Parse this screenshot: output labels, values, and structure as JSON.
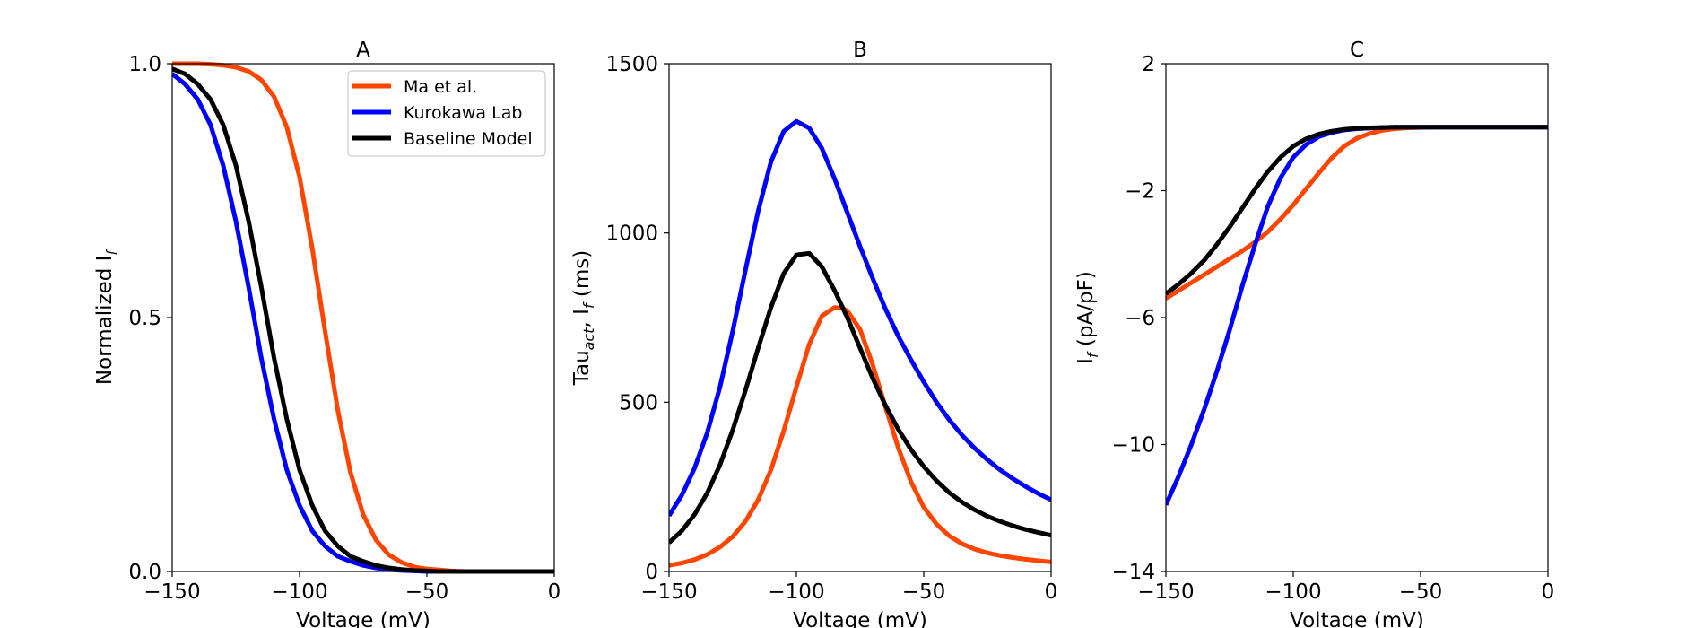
{
  "chart_data": [
    {
      "type": "line",
      "title": "A",
      "xlabel": "Voltage (mV)",
      "ylabel_main": "Normalized I",
      "ylabel_sub": "f",
      "xlim": [
        -150,
        0
      ],
      "ylim": [
        0.0,
        1.0
      ],
      "xticks": [
        -150,
        -100,
        -50,
        0
      ],
      "xtick_labels": [
        "−150",
        "−100",
        "−50",
        "0"
      ],
      "yticks": [
        0.0,
        0.5,
        1.0
      ],
      "ytick_labels": [
        "0.0",
        "0.5",
        "1.0"
      ],
      "grid": false,
      "legend": "top-right",
      "legend_entries": [
        "Ma et al.",
        "Kurokawa Lab",
        "Baseline Model"
      ],
      "series": [
        {
          "name": "Ma et al.",
          "color": "#FF4500",
          "x": [
            -150,
            -145,
            -140,
            -135,
            -130,
            -125,
            -120,
            -115,
            -110,
            -105,
            -100,
            -95,
            -90,
            -85,
            -80,
            -75,
            -70,
            -65,
            -60,
            -55,
            -50,
            -45,
            -40,
            -35,
            -30,
            -25,
            -20,
            -15,
            -10,
            -5,
            0
          ],
          "y": [
            1.0,
            1.0,
            1.0,
            0.999,
            0.997,
            0.993,
            0.985,
            0.968,
            0.935,
            0.875,
            0.777,
            0.636,
            0.474,
            0.318,
            0.195,
            0.112,
            0.062,
            0.033,
            0.018,
            0.009,
            0.005,
            0.003,
            0.001,
            0.0,
            0.0,
            0.0,
            0.0,
            0.0,
            0.0,
            0.0,
            0.0
          ]
        },
        {
          "name": "Kurokawa Lab",
          "color": "#0000FF",
          "x": [
            -150,
            -145,
            -140,
            -135,
            -130,
            -125,
            -120,
            -115,
            -110,
            -105,
            -100,
            -95,
            -90,
            -85,
            -80,
            -75,
            -70,
            -65,
            -60,
            -55,
            -50,
            -45,
            -40,
            -35,
            -30,
            -25,
            -20,
            -15,
            -10,
            -5,
            0
          ],
          "y": [
            0.98,
            0.96,
            0.93,
            0.88,
            0.8,
            0.69,
            0.56,
            0.42,
            0.3,
            0.2,
            0.13,
            0.08,
            0.05,
            0.03,
            0.02,
            0.012,
            0.007,
            0.004,
            0.002,
            0.001,
            0.0,
            0.0,
            0.0,
            0.0,
            0.0,
            0.0,
            0.0,
            0.0,
            0.0,
            0.0,
            0.0
          ]
        },
        {
          "name": "Baseline Model",
          "color": "#000000",
          "x": [
            -150,
            -145,
            -140,
            -135,
            -130,
            -125,
            -120,
            -115,
            -110,
            -105,
            -100,
            -95,
            -90,
            -85,
            -80,
            -75,
            -70,
            -65,
            -60,
            -55,
            -50,
            -45,
            -40,
            -35,
            -30,
            -25,
            -20,
            -15,
            -10,
            -5,
            0
          ],
          "y": [
            0.99,
            0.98,
            0.96,
            0.93,
            0.88,
            0.8,
            0.69,
            0.56,
            0.42,
            0.3,
            0.2,
            0.13,
            0.08,
            0.05,
            0.03,
            0.02,
            0.012,
            0.007,
            0.004,
            0.002,
            0.001,
            0.0,
            0.0,
            0.0,
            0.0,
            0.0,
            0.0,
            0.0,
            0.0,
            0.0,
            0.0
          ]
        }
      ]
    },
    {
      "type": "line",
      "title": "B",
      "xlabel": "Voltage (mV)",
      "ylabel_main": "Tau",
      "ylabel_sub": "act",
      "ylabel_mid": ", I",
      "ylabel_sub2": "f",
      "ylabel_tail": " (ms)",
      "xlim": [
        -150,
        0
      ],
      "ylim": [
        0,
        1500
      ],
      "xticks": [
        -150,
        -100,
        -50,
        0
      ],
      "xtick_labels": [
        "−150",
        "−100",
        "−50",
        "0"
      ],
      "yticks": [
        0,
        500,
        1000,
        1500
      ],
      "ytick_labels": [
        "0",
        "500",
        "1000",
        "1500"
      ],
      "grid": false,
      "series": [
        {
          "name": "Ma et al.",
          "color": "#FF4500",
          "x": [
            -150,
            -145,
            -140,
            -135,
            -130,
            -125,
            -120,
            -115,
            -110,
            -105,
            -100,
            -95,
            -90,
            -85,
            -82,
            -80,
            -75,
            -70,
            -65,
            -60,
            -55,
            -50,
            -45,
            -40,
            -35,
            -30,
            -25,
            -20,
            -15,
            -10,
            -5,
            0
          ],
          "y": [
            18,
            25,
            35,
            50,
            72,
            103,
            148,
            212,
            300,
            415,
            545,
            670,
            755,
            780,
            778,
            770,
            715,
            610,
            485,
            365,
            265,
            190,
            140,
            105,
            82,
            66,
            55,
            47,
            41,
            36,
            32,
            28
          ]
        },
        {
          "name": "Kurokawa Lab",
          "color": "#0000FF",
          "x": [
            -150,
            -145,
            -140,
            -135,
            -130,
            -125,
            -120,
            -115,
            -110,
            -105,
            -100,
            -95,
            -90,
            -85,
            -80,
            -75,
            -70,
            -65,
            -60,
            -55,
            -50,
            -45,
            -40,
            -35,
            -30,
            -25,
            -20,
            -15,
            -10,
            -5,
            0
          ],
          "y": [
            165,
            225,
            305,
            410,
            545,
            710,
            890,
            1065,
            1210,
            1300,
            1330,
            1310,
            1250,
            1160,
            1060,
            960,
            865,
            775,
            695,
            625,
            560,
            500,
            448,
            403,
            364,
            330,
            300,
            274,
            251,
            230,
            212
          ]
        },
        {
          "name": "Baseline Model",
          "color": "#000000",
          "x": [
            -150,
            -145,
            -140,
            -135,
            -130,
            -125,
            -120,
            -115,
            -110,
            -105,
            -100,
            -95,
            -90,
            -85,
            -80,
            -75,
            -70,
            -65,
            -60,
            -55,
            -50,
            -45,
            -40,
            -35,
            -30,
            -25,
            -20,
            -15,
            -10,
            -5,
            0
          ],
          "y": [
            85,
            120,
            168,
            232,
            315,
            418,
            535,
            660,
            780,
            880,
            935,
            940,
            900,
            830,
            750,
            660,
            570,
            490,
            420,
            360,
            310,
            268,
            233,
            205,
            182,
            163,
            148,
            135,
            124,
            115,
            107
          ]
        }
      ]
    },
    {
      "type": "line",
      "title": "C",
      "xlabel": "Voltage (mV)",
      "ylabel_main": "I",
      "ylabel_sub": "f",
      "ylabel_tail": " (pA/pF)",
      "xlim": [
        -150,
        0
      ],
      "ylim": [
        -14,
        2
      ],
      "xticks": [
        -150,
        -100,
        -50,
        0
      ],
      "xtick_labels": [
        "−150",
        "−100",
        "−50",
        "0"
      ],
      "yticks": [
        -14,
        -10,
        -6,
        -2,
        2
      ],
      "ytick_labels": [
        "−14",
        "−10",
        "−6",
        "−2",
        "2"
      ],
      "grid": false,
      "series": [
        {
          "name": "Ma et al.",
          "color": "#FF4500",
          "x": [
            -150,
            -145,
            -140,
            -135,
            -130,
            -125,
            -120,
            -115,
            -110,
            -105,
            -100,
            -95,
            -90,
            -85,
            -80,
            -75,
            -70,
            -65,
            -60,
            -55,
            -50,
            -45,
            -40,
            -35,
            -30,
            -25,
            -20,
            -15,
            -10,
            -5,
            0
          ],
          "y": [
            -5.4,
            -5.15,
            -4.9,
            -4.65,
            -4.4,
            -4.15,
            -3.9,
            -3.62,
            -3.3,
            -2.9,
            -2.45,
            -1.95,
            -1.45,
            -0.98,
            -0.6,
            -0.35,
            -0.2,
            -0.1,
            -0.05,
            -0.02,
            -0.01,
            0.0,
            0.0,
            0.0,
            0.0,
            0.0,
            0.0,
            0.0,
            0.0,
            0.0,
            0.0
          ]
        },
        {
          "name": "Kurokawa Lab",
          "color": "#0000FF",
          "x": [
            -150,
            -145,
            -140,
            -135,
            -130,
            -125,
            -120,
            -115,
            -110,
            -105,
            -100,
            -95,
            -90,
            -85,
            -80,
            -75,
            -70,
            -65,
            -60,
            -55,
            -50,
            -45,
            -40,
            -35,
            -30,
            -25,
            -20,
            -15,
            -10,
            -5,
            0
          ],
          "y": [
            -11.9,
            -11.0,
            -10.0,
            -8.9,
            -7.7,
            -6.4,
            -5.0,
            -3.7,
            -2.5,
            -1.6,
            -0.95,
            -0.55,
            -0.3,
            -0.17,
            -0.09,
            -0.05,
            -0.03,
            -0.01,
            0.0,
            0.0,
            0.0,
            0.0,
            0.0,
            0.0,
            0.0,
            0.0,
            0.0,
            0.0,
            0.0,
            0.0,
            0.0
          ]
        },
        {
          "name": "Baseline Model",
          "color": "#000000",
          "x": [
            -150,
            -145,
            -140,
            -135,
            -130,
            -125,
            -120,
            -115,
            -110,
            -105,
            -100,
            -95,
            -90,
            -85,
            -80,
            -75,
            -70,
            -65,
            -60,
            -55,
            -50,
            -45,
            -40,
            -35,
            -30,
            -25,
            -20,
            -15,
            -10,
            -5,
            0
          ],
          "y": [
            -5.25,
            -4.95,
            -4.6,
            -4.2,
            -3.7,
            -3.15,
            -2.55,
            -1.95,
            -1.4,
            -0.95,
            -0.6,
            -0.37,
            -0.22,
            -0.13,
            -0.07,
            -0.04,
            -0.02,
            -0.01,
            0.0,
            0.0,
            0.0,
            0.0,
            0.0,
            0.0,
            0.0,
            0.0,
            0.0,
            0.0,
            0.0,
            0.0,
            0.0
          ]
        }
      ]
    }
  ]
}
